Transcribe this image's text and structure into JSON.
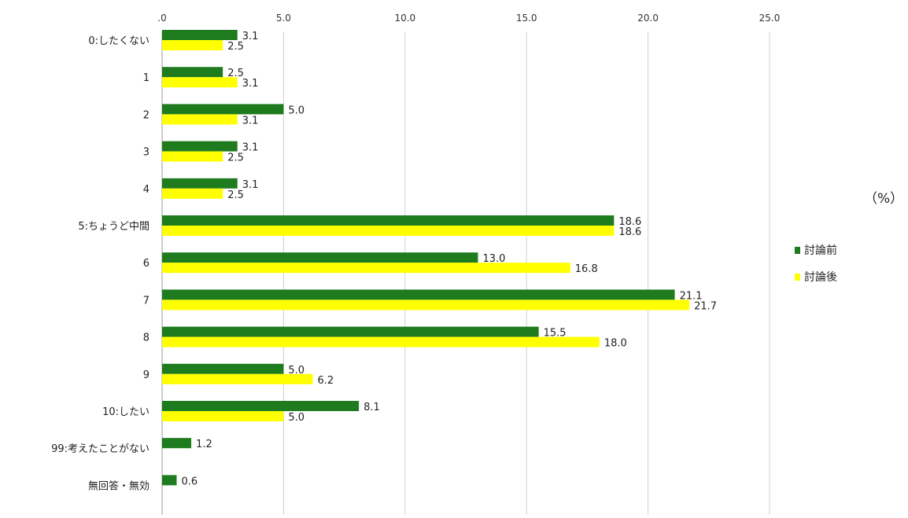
{
  "chart_data": {
    "type": "bar",
    "orientation": "horizontal",
    "categories": [
      "0:したくない",
      "1",
      "2",
      "3",
      "4",
      "5:ちょうど中間",
      "6",
      "7",
      "8",
      "9",
      "10:したい",
      "99:考えたことがない",
      "無回答・無効"
    ],
    "series": [
      {
        "name": "討論前",
        "color": "#1e7b1e",
        "values": [
          3.1,
          2.5,
          5.0,
          3.1,
          3.1,
          18.6,
          13.0,
          21.1,
          15.5,
          5.0,
          8.1,
          1.2,
          0.6
        ]
      },
      {
        "name": "討論後",
        "color": "#ffff00",
        "values": [
          2.5,
          3.1,
          3.1,
          2.5,
          2.5,
          18.6,
          16.8,
          21.7,
          18.0,
          6.2,
          5.0,
          null,
          null
        ]
      }
    ],
    "xlim": [
      0,
      25
    ],
    "xticks": [
      ".0",
      "5.0",
      "10.0",
      "15.0",
      "20.0",
      "25.0"
    ],
    "unit": "（%）",
    "grid": true,
    "legend_position": "right"
  }
}
